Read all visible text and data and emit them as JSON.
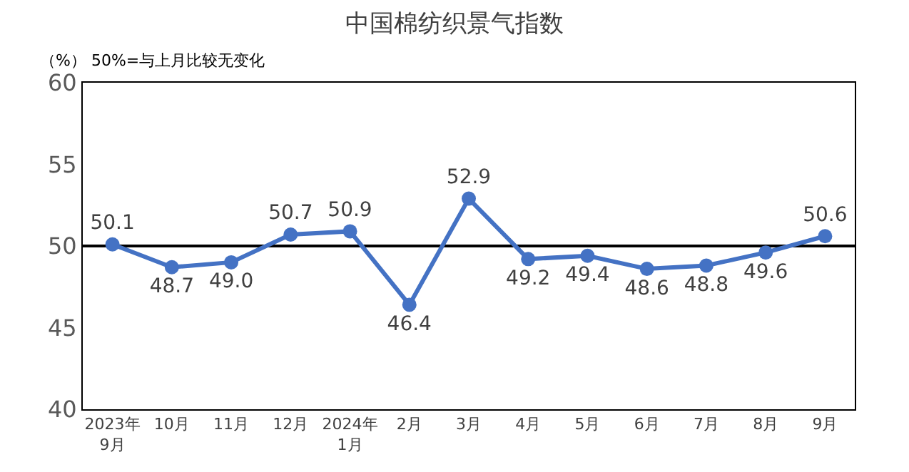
{
  "chart_data": {
    "type": "line",
    "title": "中国棉纺织景气指数",
    "annotations": [
      "（%） 50%=与上月比较无变化"
    ],
    "categories": [
      "2023年\n9月",
      "10月",
      "11月",
      "12月",
      "2024年\n1月",
      "2月",
      "3月",
      "4月",
      "5月",
      "6月",
      "7月",
      "8月",
      "9月"
    ],
    "series": [
      {
        "color": "#4472c4",
        "values": [
          50.1,
          48.7,
          49.0,
          50.7,
          50.9,
          46.4,
          52.9,
          49.2,
          49.4,
          48.6,
          48.8,
          49.6,
          50.6
        ],
        "value_labels": [
          "50.1",
          "48.7",
          "49.0",
          "50.7",
          "50.9",
          "46.4",
          "52.9",
          "49.2",
          "49.4",
          "48.6",
          "48.8",
          "49.6",
          "50.6"
        ]
      }
    ],
    "ylim": [
      40,
      60
    ],
    "yticks": [
      40,
      45,
      50,
      55,
      60
    ],
    "ref_lines": [
      {
        "axis": "y",
        "value": 50,
        "color": "#000000"
      }
    ],
    "grid": false,
    "legend": false,
    "marker": "circle",
    "line_style": "solid"
  }
}
